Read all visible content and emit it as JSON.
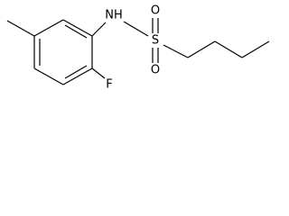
{
  "atoms": {
    "nh": "NH",
    "s": "S",
    "o_top": "O",
    "o_bottom": "O",
    "f": "F"
  }
}
